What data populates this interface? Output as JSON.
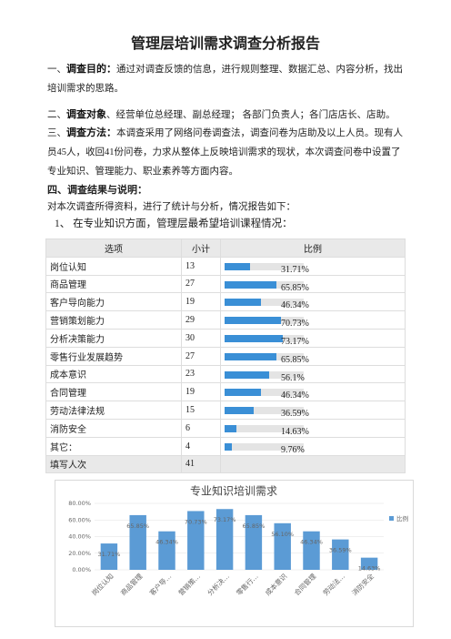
{
  "title": "管理层培训需求调查分析报告",
  "paragraphs": [
    {
      "num": "一、",
      "label": "调查目的：",
      "text": "通过对调查反馈的信息，进行规则整理、数据汇总、内容分析，找出培训需求的思路。"
    },
    {
      "num": "二、",
      "label": "调查对象",
      "text": "、经营单位总经理、副总经理； 各部门负责人；各门店店长、店助。"
    },
    {
      "num": "三、",
      "label": "调查方法：",
      "text": "本调查采用了网络问卷调查法，调查问卷为店助及以上人员。现有人员45人，收回41份问卷，力求从整体上反映培训需求的现状，本次调查问卷中设置了专业知识、管理能力、职业素养等方面内容。"
    }
  ],
  "section": "四、调查结果与说明：",
  "intro": "对本次调查所得资料，进行了统计与分析，情况报告如下：",
  "subhead": "1、 在专业知识方面，管理层最希望培训课程情况：",
  "table": {
    "headers": [
      "选项",
      "小计",
      "比例"
    ],
    "rows": [
      {
        "option": "岗位认知",
        "count": 13,
        "ratio": 31.71,
        "ratio_label": "31.71%"
      },
      {
        "option": "商品管理",
        "count": 27,
        "ratio": 65.85,
        "ratio_label": "65.85%"
      },
      {
        "option": "客户导向能力",
        "count": 19,
        "ratio": 46.34,
        "ratio_label": "46.34%"
      },
      {
        "option": "营销策划能力",
        "count": 29,
        "ratio": 70.73,
        "ratio_label": "70.73%"
      },
      {
        "option": "分析决策能力",
        "count": 30,
        "ratio": 73.17,
        "ratio_label": "73.17%"
      },
      {
        "option": "零售行业发展趋势",
        "count": 27,
        "ratio": 65.85,
        "ratio_label": "65.85%"
      },
      {
        "option": "成本意识",
        "count": 23,
        "ratio": 56.1,
        "ratio_label": "56.1%"
      },
      {
        "option": "合同管理",
        "count": 19,
        "ratio": 46.34,
        "ratio_label": "46.34%"
      },
      {
        "option": "劳动法律法规",
        "count": 15,
        "ratio": 36.59,
        "ratio_label": "36.59%"
      },
      {
        "option": "消防安全",
        "count": 6,
        "ratio": 14.63,
        "ratio_label": "14.63%"
      },
      {
        "option": "其它：",
        "count": 4,
        "ratio": 9.76,
        "ratio_label": "9.76%"
      }
    ],
    "total": {
      "option": "填写人次",
      "count": 41
    }
  },
  "chart_data": {
    "type": "bar",
    "title": "专业知识培训需求",
    "categories": [
      "岗位认知",
      "商品管理",
      "客户导…",
      "营销策…",
      "分析决…",
      "零售行…",
      "成本意识",
      "合同管理",
      "劳动法…",
      "消防安全"
    ],
    "series": [
      {
        "name": "比例",
        "color": "#5b9bd5",
        "values": [
          31.71,
          65.85,
          46.34,
          70.73,
          73.17,
          65.85,
          56.1,
          46.34,
          36.59,
          14.63
        ],
        "value_labels": [
          "31.71%",
          "65.85%",
          "46.34%",
          "70.73%",
          "73.17%",
          "65.85%",
          "56.10%",
          "46.34%",
          "36.59%",
          "14.63%"
        ]
      }
    ],
    "ylim": [
      0,
      80
    ],
    "yticks": [
      {
        "value": 0,
        "label": "0.00%"
      },
      {
        "value": 20,
        "label": "20.00%"
      },
      {
        "value": 40,
        "label": "40.00%"
      },
      {
        "value": 60,
        "label": "60.00%"
      },
      {
        "value": 80,
        "label": "80.00%"
      }
    ],
    "grid": true,
    "legend": "right"
  }
}
